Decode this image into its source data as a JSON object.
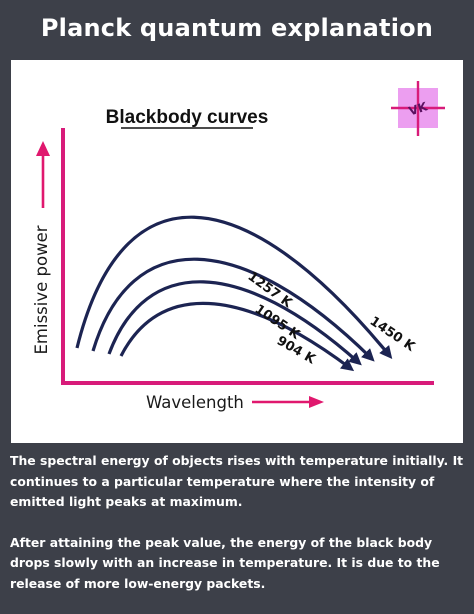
{
  "header": {
    "title": "Planck quantum explanation"
  },
  "diagram": {
    "heading": "Blackbody curves",
    "y_axis_label": "Emissive power",
    "x_axis_label": "Wavelength",
    "logo_text": "VK",
    "curves": [
      {
        "label": "1450 K",
        "color": "#1c2452"
      },
      {
        "label": "1257 K",
        "color": "#1c2452"
      },
      {
        "label": "1095 K",
        "color": "#1c2452"
      },
      {
        "label": "904 K",
        "color": "#1c2452"
      }
    ],
    "colors": {
      "axis": "#d81b7a",
      "arrow": "#e0186e",
      "curve": "#1c2452",
      "logo_bg": "#ec9ef0"
    }
  },
  "description": {
    "paragraph_1": "The spectral energy of objects rises with temperature initially. It continues to a particular temperature where the intensity of emitted light peaks at maximum.",
    "paragraph_2": "After attaining the peak value, the energy of the black body drops slowly with an increase in temperature. It is due to the release of more low-energy packets."
  }
}
